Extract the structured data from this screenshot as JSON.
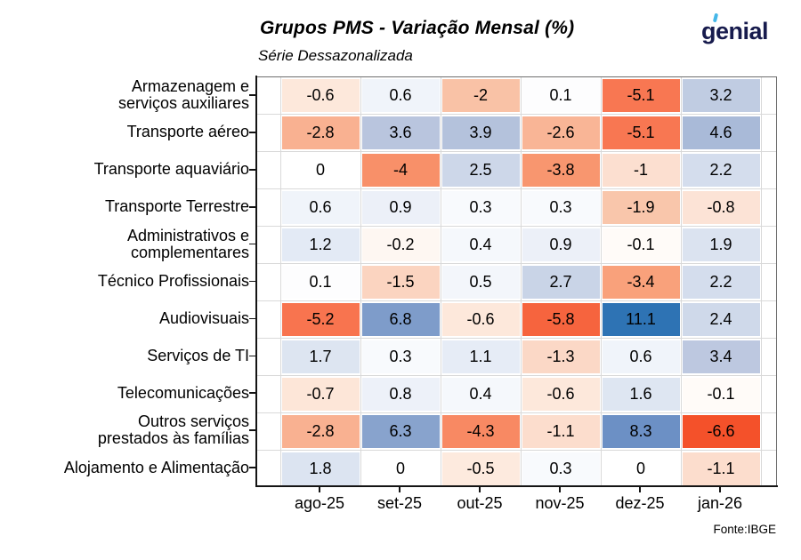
{
  "header": {
    "title": "Grupos PMS - Variação Mensal (%)",
    "subtitle": "Série Dessazonalizada",
    "logo": {
      "text": "genial",
      "color": "#171b4d",
      "accent_color": "#45b7e8"
    }
  },
  "footer": {
    "source": "Fonte:IBGE"
  },
  "chart_data": {
    "type": "heatmap",
    "title": "Grupos PMS - Variação Mensal (%)",
    "subtitle": "Série Dessazonalizada",
    "legend": "none",
    "grid": true,
    "columns": [
      "ago-25",
      "set-25",
      "out-25",
      "nov-25",
      "dez-25",
      "jan-26"
    ],
    "rows": [
      {
        "label": "Armazenagem e\nserviços auxiliares",
        "values": [
          "-0.6",
          "0.6",
          "-2",
          "0.1",
          "-5.1",
          "3.2"
        ]
      },
      {
        "label": "Transporte aéreo",
        "values": [
          "-2.8",
          "3.6",
          "3.9",
          "-2.6",
          "-5.1",
          "4.6"
        ]
      },
      {
        "label": "Transporte aquaviário",
        "values": [
          "0",
          "-4",
          "2.5",
          "-3.8",
          "-1",
          "2.2"
        ]
      },
      {
        "label": "Transporte Terrestre",
        "values": [
          "0.6",
          "0.9",
          "0.3",
          "0.3",
          "-1.9",
          "-0.8"
        ]
      },
      {
        "label": "Administrativos e\ncomplementares",
        "values": [
          "1.2",
          "-0.2",
          "0.4",
          "0.9",
          "-0.1",
          "1.9"
        ]
      },
      {
        "label": "Técnico Profissionais",
        "values": [
          "0.1",
          "-1.5",
          "0.5",
          "2.7",
          "-3.4",
          "2.2"
        ]
      },
      {
        "label": "Audiovisuais",
        "values": [
          "-5.2",
          "6.8",
          "-0.6",
          "-5.8",
          "11.1",
          "2.4"
        ]
      },
      {
        "label": "Serviços de TI",
        "values": [
          "1.7",
          "0.3",
          "1.1",
          "-1.3",
          "0.6",
          "3.4"
        ]
      },
      {
        "label": "Telecomunicações",
        "values": [
          "-0.7",
          "0.8",
          "0.4",
          "-0.6",
          "1.6",
          "-0.1"
        ]
      },
      {
        "label": "Outros serviços\nprestados às famílias",
        "values": [
          "-2.8",
          "6.3",
          "-4.3",
          "-1.1",
          "8.3",
          "-6.6"
        ]
      },
      {
        "label": "Alojamento e Alimentação",
        "values": [
          "1.8",
          "0",
          "-0.5",
          "0.3",
          "0",
          "-1.1"
        ]
      }
    ],
    "value_domain": [
      -6.6,
      11.1
    ],
    "color_scale": {
      "negative_max": "#f4512a",
      "zero": "#ffffff",
      "positive_max": "#2e73b4",
      "anchors": [
        [
          -6.6,
          "#f4512a"
        ],
        [
          -5.5,
          "#f76b45"
        ],
        [
          -5.0,
          "#f87a55"
        ],
        [
          -4.0,
          "#f89069"
        ],
        [
          -3.4,
          "#f9a17b"
        ],
        [
          -2.8,
          "#f9b191"
        ],
        [
          -2.0,
          "#f9c2a6"
        ],
        [
          -1.5,
          "#fbd4c0"
        ],
        [
          -1.0,
          "#fcdfd0"
        ],
        [
          -0.5,
          "#fdeade"
        ],
        [
          0,
          "#ffffff"
        ],
        [
          0.3,
          "#f8fafd"
        ],
        [
          0.6,
          "#f0f4fa"
        ],
        [
          0.9,
          "#ecf0f8"
        ],
        [
          1.2,
          "#e3eaf5"
        ],
        [
          1.9,
          "#dbe3f0"
        ],
        [
          2.5,
          "#cdd7e9"
        ],
        [
          3.6,
          "#b9c5de"
        ],
        [
          4.6,
          "#a9bad8"
        ],
        [
          6.8,
          "#7e9cca"
        ],
        [
          8.3,
          "#6c90c5"
        ],
        [
          11.1,
          "#2e73b4"
        ]
      ]
    }
  }
}
